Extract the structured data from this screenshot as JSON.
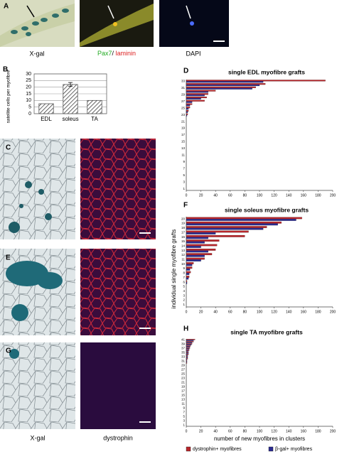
{
  "panels": {
    "a": "A",
    "b": "B",
    "c": "C",
    "d": "D",
    "e": "E",
    "f": "F",
    "g": "G",
    "h": "H"
  },
  "captions": {
    "a_xgal": "X-gal",
    "a_pax7": "Pax7",
    "a_sep": "/ ",
    "a_laminin": "laminin",
    "a_dapi": "DAPI",
    "xgal": "X-gal",
    "dystrophin": "dystrophin"
  },
  "chart_data": [
    {
      "type": "bar",
      "ylabel": "satellite cells per myofibre",
      "categories": [
        "EDL",
        "soleus",
        "TA"
      ],
      "values": [
        7.5,
        22,
        10
      ],
      "errors": [
        null,
        1.5,
        null
      ],
      "color": "#555555",
      "ylim": [
        0,
        30
      ],
      "yticks": [
        0,
        5,
        10,
        15,
        20,
        25,
        30
      ],
      "grid": true
    },
    {
      "type": "hbar",
      "title": "single EDL myofibre grafts",
      "categories": [
        "1",
        null,
        "3",
        null,
        "5",
        null,
        "7",
        null,
        "9",
        null,
        "11",
        null,
        "13",
        null,
        "15",
        null,
        "17",
        null,
        "19",
        null,
        "21",
        null,
        "23",
        null,
        "25",
        null,
        "27",
        null,
        "29",
        null,
        "31",
        null,
        "33"
      ],
      "series": [
        {
          "color": "#b8262b",
          "values": [
            0,
            0,
            0,
            0,
            0,
            0,
            0,
            0,
            0,
            0,
            0,
            0,
            0,
            0,
            0,
            0,
            0,
            0,
            0,
            0,
            0,
            0,
            2,
            3,
            5,
            8,
            25,
            28,
            30,
            40,
            95,
            108,
            190
          ]
        },
        {
          "color": "#2b2b90",
          "values": [
            0,
            0,
            0,
            0,
            0,
            0,
            0,
            0,
            0,
            0,
            0,
            0,
            0,
            0,
            0,
            0,
            0,
            0,
            0,
            0,
            0,
            0,
            1,
            2,
            3,
            5,
            8,
            20,
            25,
            30,
            90,
            100,
            105
          ]
        }
      ],
      "xlim": [
        0,
        200
      ],
      "xticks": [
        0,
        20,
        40,
        60,
        80,
        100,
        120,
        140,
        160,
        180,
        200
      ]
    },
    {
      "type": "hbar",
      "title": "single soleus myofibre grafts",
      "ylabel": "individual single myofibre grafts",
      "categories": [
        "1",
        "2",
        "3",
        "4",
        "5",
        "6",
        "7",
        "8",
        "9",
        "10",
        "11",
        "12",
        "13",
        "14",
        "15",
        "16",
        "17",
        "18",
        "19",
        "20"
      ],
      "series": [
        {
          "color": "#b8262b",
          "values": [
            0,
            0,
            0,
            0,
            0,
            1,
            4,
            6,
            8,
            10,
            25,
            35,
            40,
            42,
            45,
            80,
            85,
            110,
            130,
            158
          ]
        },
        {
          "color": "#2b2b90",
          "values": [
            0,
            0,
            0,
            0,
            0,
            1,
            3,
            4,
            5,
            8,
            20,
            25,
            30,
            20,
            25,
            30,
            40,
            105,
            125,
            150
          ]
        }
      ],
      "xlim": [
        0,
        200
      ],
      "xticks": [
        0,
        20,
        40,
        60,
        80,
        100,
        120,
        140,
        160,
        180,
        200
      ]
    },
    {
      "type": "hbar",
      "title": "single TA myofibre grafts",
      "xlabel": "number of new myofibres in clusters",
      "categories": [
        "1",
        null,
        "3",
        null,
        "5",
        null,
        "7",
        null,
        "9",
        null,
        "11",
        null,
        "13",
        null,
        "15",
        null,
        "17",
        null,
        "19",
        null,
        "21",
        null,
        "23",
        null,
        "25",
        null,
        "27",
        null,
        "29",
        null,
        "31",
        null,
        "33",
        null,
        "35",
        null,
        "37",
        null,
        "39",
        null,
        "41"
      ],
      "series": [
        {
          "name": "dystrophin+ myofibres",
          "color": "#b8262b",
          "values": [
            0,
            0,
            0,
            0,
            0,
            0,
            0,
            0,
            0,
            0,
            0,
            0,
            0,
            0,
            0,
            0,
            0,
            0,
            0,
            0,
            0,
            0,
            0,
            0,
            0,
            0,
            0,
            0,
            0,
            1,
            1,
            2,
            2,
            3,
            3,
            4,
            5,
            6,
            8,
            10,
            12
          ]
        },
        {
          "name": "β-gal+ myofibres",
          "color": "#2b2b90",
          "values": [
            0,
            0,
            0,
            0,
            0,
            0,
            0,
            0,
            0,
            0,
            0,
            0,
            0,
            0,
            0,
            0,
            0,
            0,
            0,
            0,
            0,
            0,
            0,
            0,
            0,
            0,
            0,
            0,
            0,
            0,
            1,
            1,
            2,
            2,
            3,
            3,
            4,
            5,
            7,
            8,
            10
          ]
        }
      ],
      "xlim": [
        0,
        200
      ],
      "xticks": [
        0,
        20,
        40,
        60,
        80,
        100,
        120,
        140,
        160,
        180,
        200
      ]
    }
  ]
}
